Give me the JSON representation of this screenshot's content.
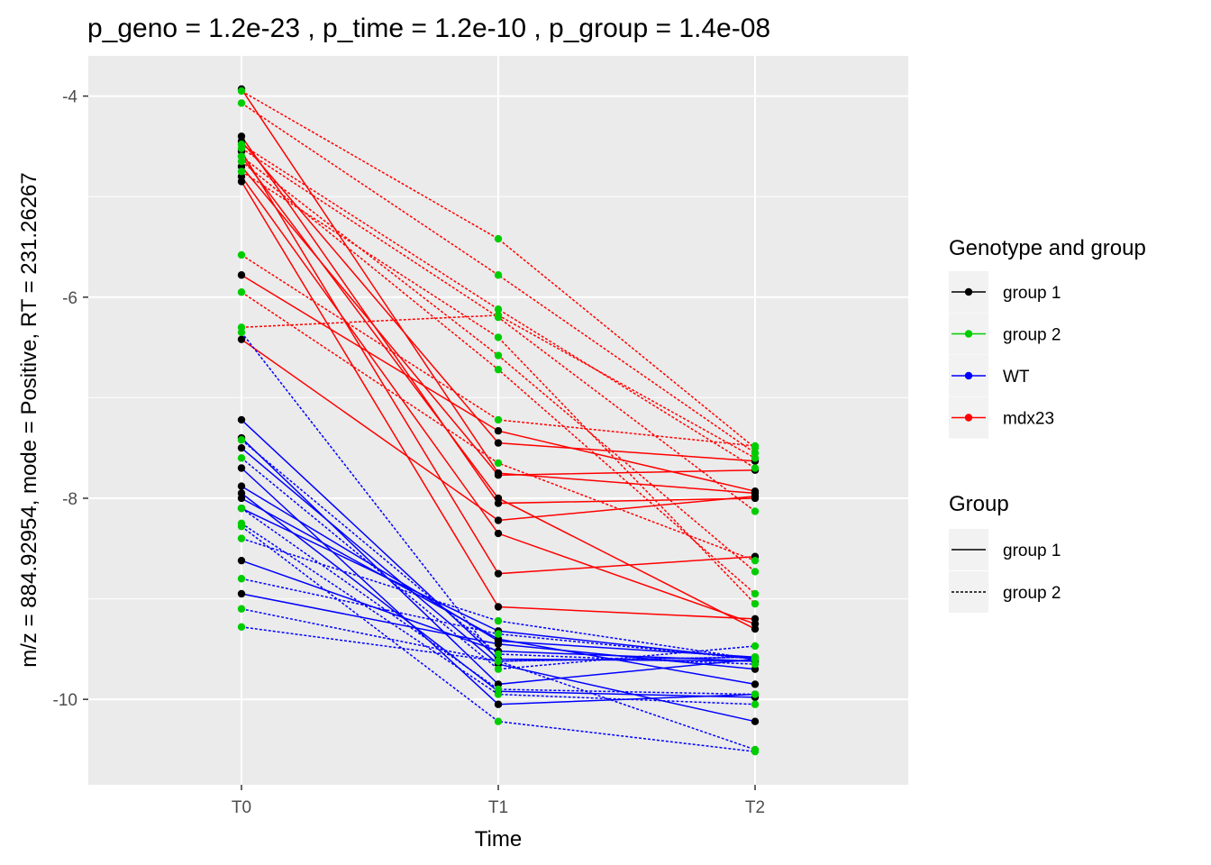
{
  "chart_data": {
    "type": "line",
    "title": "p_geno = 1.2e-23 , p_time = 1.2e-10 , p_group = 1.4e-08",
    "xlabel": "Time",
    "ylabel": "m/z = 884.92954, mode = Positive, RT = 231.26267",
    "categories": [
      "T0",
      "T1",
      "T2"
    ],
    "ylim": [
      -10.85,
      -3.6
    ],
    "yticks": [
      -4,
      -6,
      -8,
      -10
    ],
    "grid": true,
    "legend_position": "right",
    "legends": {
      "color": {
        "title": "Genotype and group",
        "entries": [
          {
            "label": "group 1",
            "color": "#000000"
          },
          {
            "label": "group 2",
            "color": "#00cd00"
          },
          {
            "label": "WT",
            "color": "#0000ff"
          },
          {
            "label": "mdx23",
            "color": "#ff0000"
          }
        ]
      },
      "linetype": {
        "title": "Group",
        "entries": [
          {
            "label": "group 1",
            "dash": "solid"
          },
          {
            "label": "group 2",
            "dash": "dotted"
          }
        ]
      }
    },
    "series": [
      {
        "genotype": "mdx23",
        "group": "group 1",
        "values": [
          -3.93,
          -7.75,
          -7.95
        ]
      },
      {
        "genotype": "mdx23",
        "group": "group 1",
        "values": [
          -4.4,
          -8.05,
          -8.0
        ]
      },
      {
        "genotype": "mdx23",
        "group": "group 1",
        "values": [
          -4.45,
          -7.45,
          -7.63
        ]
      },
      {
        "genotype": "mdx23",
        "group": "group 1",
        "values": [
          -4.55,
          -8.75,
          -8.58
        ]
      },
      {
        "genotype": "mdx23",
        "group": "group 1",
        "values": [
          -4.6,
          -8.0,
          -9.3
        ]
      },
      {
        "genotype": "mdx23",
        "group": "group 1",
        "values": [
          -4.7,
          -7.77,
          -7.72
        ]
      },
      {
        "genotype": "mdx23",
        "group": "group 1",
        "values": [
          -4.8,
          -8.35,
          -9.25
        ]
      },
      {
        "genotype": "mdx23",
        "group": "group 1",
        "values": [
          -5.78,
          -7.33,
          -7.93
        ]
      },
      {
        "genotype": "mdx23",
        "group": "group 1",
        "values": [
          -6.42,
          -8.22,
          -7.98
        ]
      },
      {
        "genotype": "mdx23",
        "group": "group 1",
        "values": [
          -4.85,
          -9.08,
          -9.2
        ]
      },
      {
        "genotype": "mdx23",
        "group": "group 2",
        "values": [
          -3.95,
          -5.42,
          -7.5
        ]
      },
      {
        "genotype": "mdx23",
        "group": "group 2",
        "values": [
          -4.07,
          -5.78,
          -7.55
        ]
      },
      {
        "genotype": "mdx23",
        "group": "group 2",
        "values": [
          -4.48,
          -6.12,
          -7.7
        ]
      },
      {
        "genotype": "mdx23",
        "group": "group 2",
        "values": [
          -4.52,
          -6.2,
          -8.13
        ]
      },
      {
        "genotype": "mdx23",
        "group": "group 2",
        "values": [
          -4.6,
          -6.58,
          -8.73
        ]
      },
      {
        "genotype": "mdx23",
        "group": "group 2",
        "values": [
          -4.65,
          -6.72,
          -8.95
        ]
      },
      {
        "genotype": "mdx23",
        "group": "group 2",
        "values": [
          -4.75,
          -6.4,
          -9.05
        ]
      },
      {
        "genotype": "mdx23",
        "group": "group 2",
        "values": [
          -5.58,
          -7.22,
          -7.48
        ]
      },
      {
        "genotype": "mdx23",
        "group": "group 2",
        "values": [
          -5.95,
          -7.65,
          -8.62
        ]
      },
      {
        "genotype": "mdx23",
        "group": "group 2",
        "values": [
          -6.3,
          -6.18,
          -7.6
        ]
      },
      {
        "genotype": "WT",
        "group": "group 1",
        "values": [
          -7.22,
          -9.6,
          -9.62
        ]
      },
      {
        "genotype": "WT",
        "group": "group 1",
        "values": [
          -7.4,
          -9.85,
          -9.6
        ]
      },
      {
        "genotype": "WT",
        "group": "group 1",
        "values": [
          -7.5,
          -9.65,
          -10.22
        ]
      },
      {
        "genotype": "WT",
        "group": "group 1",
        "values": [
          -7.7,
          -10.05,
          -9.95
        ]
      },
      {
        "genotype": "WT",
        "group": "group 1",
        "values": [
          -7.88,
          -9.42,
          -9.58
        ]
      },
      {
        "genotype": "WT",
        "group": "group 1",
        "values": [
          -8.0,
          -9.4,
          -9.85
        ]
      },
      {
        "genotype": "WT",
        "group": "group 1",
        "values": [
          -8.1,
          -9.32,
          -9.6
        ]
      },
      {
        "genotype": "WT",
        "group": "group 1",
        "values": [
          -8.62,
          -9.52,
          -9.62
        ]
      },
      {
        "genotype": "WT",
        "group": "group 1",
        "values": [
          -8.95,
          -9.45,
          -9.7
        ]
      },
      {
        "genotype": "WT",
        "group": "group 1",
        "values": [
          -7.95,
          -9.92,
          -9.98
        ]
      },
      {
        "genotype": "WT",
        "group": "group 2",
        "values": [
          -6.35,
          -9.62,
          -10.5
        ]
      },
      {
        "genotype": "WT",
        "group": "group 2",
        "values": [
          -7.42,
          -9.55,
          -9.65
        ]
      },
      {
        "genotype": "WT",
        "group": "group 2",
        "values": [
          -7.6,
          -9.7,
          -9.47
        ]
      },
      {
        "genotype": "WT",
        "group": "group 2",
        "values": [
          -8.1,
          -9.9,
          -9.95
        ]
      },
      {
        "genotype": "WT",
        "group": "group 2",
        "values": [
          -8.25,
          -9.95,
          -10.05
        ]
      },
      {
        "genotype": "WT",
        "group": "group 2",
        "values": [
          -8.4,
          -9.22,
          -9.6
        ]
      },
      {
        "genotype": "WT",
        "group": "group 2",
        "values": [
          -8.8,
          -9.35,
          -9.6
        ]
      },
      {
        "genotype": "WT",
        "group": "group 2",
        "values": [
          -9.1,
          -9.62,
          -9.58
        ]
      },
      {
        "genotype": "WT",
        "group": "group 2",
        "values": [
          -9.28,
          -9.62,
          -9.58
        ]
      },
      {
        "genotype": "WT",
        "group": "group 2",
        "values": [
          -8.28,
          -10.22,
          -10.52
        ]
      }
    ],
    "point_colors": {
      "group 1": "#000000",
      "group 2": "#00cd00"
    }
  }
}
